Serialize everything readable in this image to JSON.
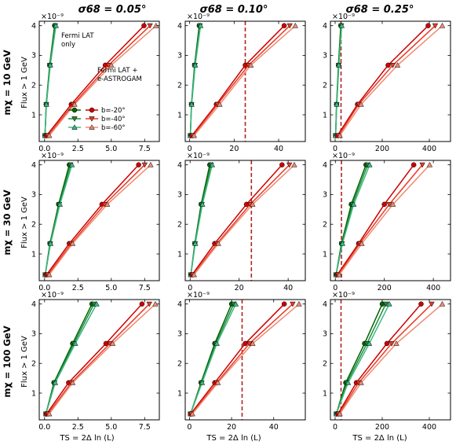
{
  "column_titles": [
    "σ68 = 0.05°",
    "σ68 = 0.10°",
    "σ68 = 0.25°"
  ],
  "row_labels": [
    "mχ = 10 GeV",
    "mχ = 30 GeV",
    "mχ = 100 GeV"
  ],
  "ylabel": "Flux > 1 GeV",
  "xlabel": "TS = 2Δ ln (L)",
  "exponent_label": "×10⁻⁹",
  "annotations": {
    "fermi_only": [
      "Fermi LAT",
      "only"
    ],
    "fermi_plus": [
      "Fermi LAT +",
      "e-ASTROGAM"
    ]
  },
  "legend": [
    {
      "b": "b=-20°",
      "fermi_color": "#006400",
      "astro_color": "#cc0000",
      "marker": "circle"
    },
    {
      "b": "b=-40°",
      "fermi_color": "#1e8c3a",
      "astro_color": "#e83a28",
      "marker": "triangle-down"
    },
    {
      "b": "b=-60°",
      "fermi_color": "#3cb882",
      "astro_color": "#f08a70",
      "marker": "triangle-up"
    }
  ],
  "colors": {
    "threshold_line": "#b22222"
  },
  "chart_data": [
    {
      "type": "line",
      "row": 0,
      "col": 0,
      "xlim": [
        -0.4,
        8.6
      ],
      "xticks": [
        0,
        2.5,
        5,
        7.5
      ],
      "xticklabels": [
        "0.0",
        "2.5",
        "5.0",
        "7.5"
      ],
      "ylim": [
        0.1,
        4.15
      ],
      "yticks": [
        1,
        2,
        3,
        4
      ],
      "threshold": null,
      "y": [
        0.3,
        1.35,
        2.67,
        4.0
      ],
      "series": [
        {
          "name": "Fermi LAT only, b=-20°",
          "x": [
            0.03,
            0.12,
            0.38,
            0.75
          ]
        },
        {
          "name": "Fermi LAT only, b=-40°",
          "x": [
            0.03,
            0.13,
            0.4,
            0.8
          ]
        },
        {
          "name": "Fermi LAT only, b=-60°",
          "x": [
            0.03,
            0.14,
            0.43,
            0.85
          ]
        },
        {
          "name": "Fermi LAT + e-ASTROGAM, b=-20°",
          "x": [
            0.15,
            2.0,
            4.55,
            7.45
          ]
        },
        {
          "name": "Fermi LAT + e-ASTROGAM, b=-40°",
          "x": [
            0.25,
            2.15,
            4.8,
            7.9
          ]
        },
        {
          "name": "Fermi LAT + e-ASTROGAM, b=-60°",
          "x": [
            0.35,
            2.25,
            5.0,
            8.35
          ]
        }
      ]
    },
    {
      "type": "line",
      "row": 0,
      "col": 1,
      "xlim": [
        -2,
        52
      ],
      "xticks": [
        0,
        20,
        40
      ],
      "xticklabels": [
        "0",
        "20",
        "40"
      ],
      "ylim": [
        0.1,
        4.15
      ],
      "yticks": [
        1,
        2,
        3,
        4
      ],
      "threshold": 25,
      "y": [
        0.3,
        1.35,
        2.67,
        4.0
      ],
      "series": [
        {
          "name": "Fermi LAT only, b=-20°",
          "x": [
            0.3,
            0.8,
            2.2,
            4.3
          ]
        },
        {
          "name": "Fermi LAT only, b=-40°",
          "x": [
            0.3,
            0.85,
            2.35,
            4.6
          ]
        },
        {
          "name": "Fermi LAT only, b=-60°",
          "x": [
            0.3,
            0.9,
            2.5,
            4.9
          ]
        },
        {
          "name": "Fermi LAT + e-ASTROGAM, b=-20°",
          "x": [
            1.0,
            12.0,
            25.0,
            42.5
          ]
        },
        {
          "name": "Fermi LAT + e-ASTROGAM, b=-40°",
          "x": [
            1.5,
            12.5,
            26.5,
            45.0
          ]
        },
        {
          "name": "Fermi LAT + e-ASTROGAM, b=-60°",
          "x": [
            2.0,
            13.5,
            27.5,
            47.5
          ]
        }
      ]
    },
    {
      "type": "line",
      "row": 0,
      "col": 2,
      "xlim": [
        -20,
        490
      ],
      "xticks": [
        0,
        200,
        400
      ],
      "xticklabels": [
        "0",
        "200",
        "400"
      ],
      "ylim": [
        0.1,
        4.15
      ],
      "yticks": [
        1,
        2,
        3,
        4
      ],
      "threshold": 25,
      "y": [
        0.3,
        1.35,
        2.67,
        4.0
      ],
      "series": [
        {
          "name": "Fermi LAT only, b=-20°",
          "x": [
            2,
            6,
            14,
            24
          ]
        },
        {
          "name": "Fermi LAT only, b=-40°",
          "x": [
            2,
            6.5,
            15,
            26
          ]
        },
        {
          "name": "Fermi LAT only, b=-60°",
          "x": [
            2,
            7,
            16,
            28
          ]
        },
        {
          "name": "Fermi LAT + e-ASTROGAM, b=-20°",
          "x": [
            10,
            95,
            225,
            395
          ]
        },
        {
          "name": "Fermi LAT + e-ASTROGAM, b=-40°",
          "x": [
            15,
            100,
            245,
            425
          ]
        },
        {
          "name": "Fermi LAT + e-ASTROGAM, b=-60°",
          "x": [
            20,
            110,
            265,
            455
          ]
        }
      ]
    },
    {
      "type": "line",
      "row": 1,
      "col": 0,
      "xlim": [
        -0.4,
        8.6
      ],
      "xticks": [
        0,
        2.5,
        5,
        7.5
      ],
      "xticklabels": [
        "0.0",
        "2.5",
        "5.0",
        "7.5"
      ],
      "ylim": [
        0.1,
        4.15
      ],
      "yticks": [
        1,
        2,
        3,
        4
      ],
      "threshold": null,
      "y": [
        0.3,
        1.35,
        2.67,
        4.0
      ],
      "series": [
        {
          "name": "Fermi LAT only, b=-20°",
          "x": [
            0.05,
            0.4,
            1.05,
            1.85
          ]
        },
        {
          "name": "Fermi LAT only, b=-40°",
          "x": [
            0.05,
            0.42,
            1.1,
            1.95
          ]
        },
        {
          "name": "Fermi LAT only, b=-60°",
          "x": [
            0.05,
            0.45,
            1.15,
            2.05
          ]
        },
        {
          "name": "Fermi LAT + e-ASTROGAM, b=-20°",
          "x": [
            0.15,
            1.85,
            4.3,
            7.05
          ]
        },
        {
          "name": "Fermi LAT + e-ASTROGAM, b=-40°",
          "x": [
            0.25,
            2.0,
            4.5,
            7.5
          ]
        },
        {
          "name": "Fermi LAT + e-ASTROGAM, b=-60°",
          "x": [
            0.35,
            2.1,
            4.7,
            7.95
          ]
        }
      ]
    },
    {
      "type": "line",
      "row": 1,
      "col": 1,
      "xlim": [
        -2,
        47
      ],
      "xticks": [
        0,
        20,
        40
      ],
      "xticklabels": [
        "0",
        "20",
        "40"
      ],
      "ylim": [
        0.1,
        4.15
      ],
      "yticks": [
        1,
        2,
        3,
        4
      ],
      "threshold": 25,
      "y": [
        0.3,
        1.35,
        2.67,
        4.0
      ],
      "series": [
        {
          "name": "Fermi LAT only, b=-20°",
          "x": [
            0.3,
            1.9,
            4.5,
            8.0
          ]
        },
        {
          "name": "Fermi LAT only, b=-40°",
          "x": [
            0.3,
            2.0,
            4.8,
            8.5
          ]
        },
        {
          "name": "Fermi LAT only, b=-60°",
          "x": [
            0.3,
            2.1,
            5.0,
            9.0
          ]
        },
        {
          "name": "Fermi LAT + e-ASTROGAM, b=-20°",
          "x": [
            0.8,
            10.0,
            23.0,
            37.5
          ]
        },
        {
          "name": "Fermi LAT + e-ASTROGAM, b=-40°",
          "x": [
            1.2,
            11.0,
            24.5,
            40.5
          ]
        },
        {
          "name": "Fermi LAT + e-ASTROGAM, b=-60°",
          "x": [
            1.6,
            11.5,
            25.5,
            42.5
          ]
        }
      ]
    },
    {
      "type": "line",
      "row": 1,
      "col": 2,
      "xlim": [
        -20,
        470
      ],
      "xticks": [
        0,
        200,
        400
      ],
      "xticklabels": [
        "0",
        "200",
        "400"
      ],
      "ylim": [
        0.1,
        4.15
      ],
      "yticks": [
        1,
        2,
        3,
        4
      ],
      "threshold": 25,
      "y": [
        0.3,
        1.35,
        2.67,
        4.0
      ],
      "series": [
        {
          "name": "Fermi LAT only, b=-20°",
          "x": [
            3,
            25,
            65,
            125
          ]
        },
        {
          "name": "Fermi LAT only, b=-40°",
          "x": [
            3,
            27,
            70,
            132
          ]
        },
        {
          "name": "Fermi LAT only, b=-60°",
          "x": [
            3,
            29,
            75,
            140
          ]
        },
        {
          "name": "Fermi LAT + e-ASTROGAM, b=-20°",
          "x": [
            8,
            95,
            200,
            320
          ]
        },
        {
          "name": "Fermi LAT + e-ASTROGAM, b=-40°",
          "x": [
            12,
            100,
            220,
            355
          ]
        },
        {
          "name": "Fermi LAT + e-ASTROGAM, b=-60°",
          "x": [
            16,
            108,
            235,
            385
          ]
        }
      ]
    },
    {
      "type": "line",
      "row": 2,
      "col": 0,
      "xlim": [
        -0.4,
        8.6
      ],
      "xticks": [
        0,
        2.5,
        5,
        7.5
      ],
      "xticklabels": [
        "0.0",
        "2.5",
        "5.0",
        "7.5"
      ],
      "ylim": [
        0.1,
        4.15
      ],
      "yticks": [
        1,
        2,
        3,
        4
      ],
      "threshold": null,
      "y": [
        0.3,
        1.35,
        2.67,
        4.0
      ],
      "series": [
        {
          "name": "Fermi LAT only, b=-20°",
          "x": [
            0.1,
            0.7,
            2.1,
            3.55
          ]
        },
        {
          "name": "Fermi LAT only, b=-40°",
          "x": [
            0.1,
            0.75,
            2.2,
            3.7
          ]
        },
        {
          "name": "Fermi LAT only, b=-60°",
          "x": [
            0.1,
            0.8,
            2.3,
            3.9
          ]
        },
        {
          "name": "Fermi LAT + e-ASTROGAM, b=-20°",
          "x": [
            0.15,
            1.8,
            4.6,
            7.3
          ]
        },
        {
          "name": "Fermi LAT + e-ASTROGAM, b=-40°",
          "x": [
            0.25,
            2.0,
            4.9,
            7.85
          ]
        },
        {
          "name": "Fermi LAT + e-ASTROGAM, b=-60°",
          "x": [
            0.35,
            2.1,
            5.1,
            8.3
          ]
        }
      ]
    },
    {
      "type": "line",
      "row": 2,
      "col": 1,
      "xlim": [
        -2,
        55
      ],
      "xticks": [
        0,
        20,
        40
      ],
      "xticklabels": [
        "0",
        "20",
        "40"
      ],
      "ylim": [
        0.1,
        4.15
      ],
      "yticks": [
        1,
        2,
        3,
        4
      ],
      "threshold": 25,
      "y": [
        0.3,
        1.35,
        2.67,
        4.0
      ],
      "series": [
        {
          "name": "Fermi LAT only, b=-20°",
          "x": [
            0.5,
            5.5,
            12.0,
            20.0
          ]
        },
        {
          "name": "Fermi LAT only, b=-40°",
          "x": [
            0.5,
            5.8,
            12.5,
            21.0
          ]
        },
        {
          "name": "Fermi LAT only, b=-60°",
          "x": [
            0.5,
            6.0,
            13.0,
            22.0
          ]
        },
        {
          "name": "Fermi LAT + e-ASTROGAM, b=-20°",
          "x": [
            0.6,
            12.0,
            26.5,
            45.0
          ]
        },
        {
          "name": "Fermi LAT + e-ASTROGAM, b=-40°",
          "x": [
            1.0,
            13.0,
            28.5,
            49.0
          ]
        },
        {
          "name": "Fermi LAT + e-ASTROGAM, b=-60°",
          "x": [
            1.4,
            13.5,
            30.0,
            52.0
          ]
        }
      ]
    },
    {
      "type": "line",
      "row": 2,
      "col": 2,
      "xlim": [
        -20,
        490
      ],
      "xticks": [
        0,
        200,
        400
      ],
      "xticklabels": [
        "0",
        "200",
        "400"
      ],
      "ylim": [
        0.1,
        4.15
      ],
      "yticks": [
        1,
        2,
        3,
        4
      ],
      "threshold": 25,
      "y": [
        0.3,
        1.35,
        2.67,
        4.0
      ],
      "series": [
        {
          "name": "Fermi LAT only, b=-20°",
          "x": [
            5,
            45,
            125,
            200
          ]
        },
        {
          "name": "Fermi LAT only, b=-40°",
          "x": [
            5,
            50,
            135,
            215
          ]
        },
        {
          "name": "Fermi LAT only, b=-60°",
          "x": [
            5,
            55,
            145,
            230
          ]
        },
        {
          "name": "Fermi LAT + e-ASTROGAM, b=-20°",
          "x": [
            12,
            90,
            220,
            365
          ]
        },
        {
          "name": "Fermi LAT + e-ASTROGAM, b=-40°",
          "x": [
            16,
            100,
            240,
            410
          ]
        },
        {
          "name": "Fermi LAT + e-ASTROGAM, b=-60°",
          "x": [
            20,
            110,
            260,
            455
          ]
        }
      ]
    }
  ]
}
